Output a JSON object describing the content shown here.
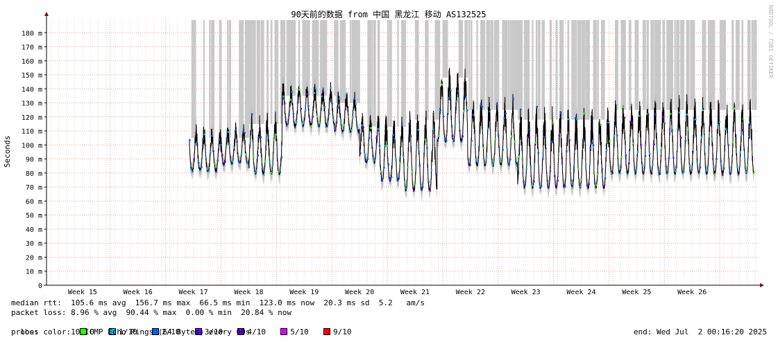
{
  "chart_data": {
    "type": "line",
    "title": "90天前的数据 from 中国 黑龙江 移动 AS132525",
    "ylabel": "Seconds",
    "ylim": [
      0,
      190
    ],
    "y_ticks": [
      {
        "v": 0,
        "label": "0"
      },
      {
        "v": 10,
        "label": "10 m"
      },
      {
        "v": 20,
        "label": "20 m"
      },
      {
        "v": 30,
        "label": "30 m"
      },
      {
        "v": 40,
        "label": "40 m"
      },
      {
        "v": 50,
        "label": "50 m"
      },
      {
        "v": 60,
        "label": "60 m"
      },
      {
        "v": 70,
        "label": "70 m"
      },
      {
        "v": 80,
        "label": "80 m"
      },
      {
        "v": 90,
        "label": "90 m"
      },
      {
        "v": 100,
        "label": "100 m"
      },
      {
        "v": 110,
        "label": "110 m"
      },
      {
        "v": 120,
        "label": "120 m"
      },
      {
        "v": 130,
        "label": "130 m"
      },
      {
        "v": 140,
        "label": "140 m"
      },
      {
        "v": 150,
        "label": "150 m"
      },
      {
        "v": 160,
        "label": "160 m"
      },
      {
        "v": 170,
        "label": "170 m"
      },
      {
        "v": 180,
        "label": "180 m"
      }
    ],
    "x_unit": "week",
    "xlim": [
      14.35,
      27.2
    ],
    "x_ticks": [
      {
        "v": 15,
        "label": "Week 15"
      },
      {
        "v": 16,
        "label": "Week 16"
      },
      {
        "v": 17,
        "label": "Week 17"
      },
      {
        "v": 18,
        "label": "Week 18"
      },
      {
        "v": 19,
        "label": "Week 19"
      },
      {
        "v": 20,
        "label": "Week 20"
      },
      {
        "v": 21,
        "label": "Week 21"
      },
      {
        "v": 22,
        "label": "Week 22"
      },
      {
        "v": 23,
        "label": "Week 23"
      },
      {
        "v": 24,
        "label": "Week 24"
      },
      {
        "v": 25,
        "label": "Week 25"
      },
      {
        "v": 26,
        "label": "Week 26"
      }
    ],
    "data_start_week": 16.93,
    "data_end_week": 27.12,
    "baseline_segments": [
      {
        "from": 16.93,
        "to": 17.5,
        "base": 82
      },
      {
        "from": 17.5,
        "to": 18.0,
        "base": 87
      },
      {
        "from": 18.0,
        "to": 18.6,
        "base": 80
      },
      {
        "from": 18.6,
        "to": 19.55,
        "base": 114
      },
      {
        "from": 19.55,
        "to": 20.0,
        "base": 110
      },
      {
        "from": 20.0,
        "to": 20.35,
        "base": 88
      },
      {
        "from": 20.35,
        "to": 20.8,
        "base": 75
      },
      {
        "from": 20.8,
        "to": 21.4,
        "base": 68
      },
      {
        "from": 21.4,
        "to": 21.95,
        "base": 103
      },
      {
        "from": 21.95,
        "to": 22.85,
        "base": 86
      },
      {
        "from": 22.85,
        "to": 24.5,
        "base": 70
      },
      {
        "from": 24.5,
        "to": 27.12,
        "base": 80
      }
    ],
    "peak_levels": [
      {
        "from": 16.93,
        "to": 17.5,
        "peak": 115
      },
      {
        "from": 17.5,
        "to": 18.0,
        "peak": 115
      },
      {
        "from": 18.0,
        "to": 18.6,
        "peak": 125
      },
      {
        "from": 18.6,
        "to": 19.55,
        "peak": 145
      },
      {
        "from": 19.55,
        "to": 20.0,
        "peak": 140
      },
      {
        "from": 20.0,
        "to": 20.8,
        "peak": 123
      },
      {
        "from": 20.8,
        "to": 21.4,
        "peak": 128
      },
      {
        "from": 21.4,
        "to": 21.95,
        "peak": 158
      },
      {
        "from": 21.95,
        "to": 22.85,
        "peak": 135
      },
      {
        "from": 22.85,
        "to": 24.5,
        "peak": 128
      },
      {
        "from": 24.5,
        "to": 27.12,
        "peak": 135
      }
    ],
    "colors": {
      "grid": "#e6a0a0",
      "grid_minor": "#f0d0d0",
      "axis": "#000000",
      "arrow": "#8b0000",
      "loss_band": "#c8c8c8",
      "smoke": "#909090",
      "median": "#000000"
    },
    "watermark": "RRDTOOL / TOBI OETIKER"
  },
  "legend": {
    "median_rtt": "median rtt:  105.6 ms avg  156.7 ms max  66.5 ms min  123.0 ms now  20.3 ms sd  5.2   am/s",
    "packet_loss": "packet loss: 8.96 % avg  90.44 % max  0.00 % min  20.84 % now",
    "loss_color_label": "loss color:",
    "loss_colors": [
      {
        "label": "0",
        "color": "#26ff00"
      },
      {
        "label": "1/10",
        "color": "#00b8ff"
      },
      {
        "label": "2/10",
        "color": "#0059ff"
      },
      {
        "label": "3/10",
        "color": "#5e00ff"
      },
      {
        "label": "4/10",
        "color": "#7e00ff"
      },
      {
        "label": "5/10",
        "color": "#dd00ff"
      },
      {
        "label": "9/10",
        "color": "#ff0000"
      }
    ],
    "probe": "probe:       10 ICMP Echo Pings (64 Bytes) every 60s",
    "end": "end: Wed Jul  2 00:16:20 2025"
  }
}
